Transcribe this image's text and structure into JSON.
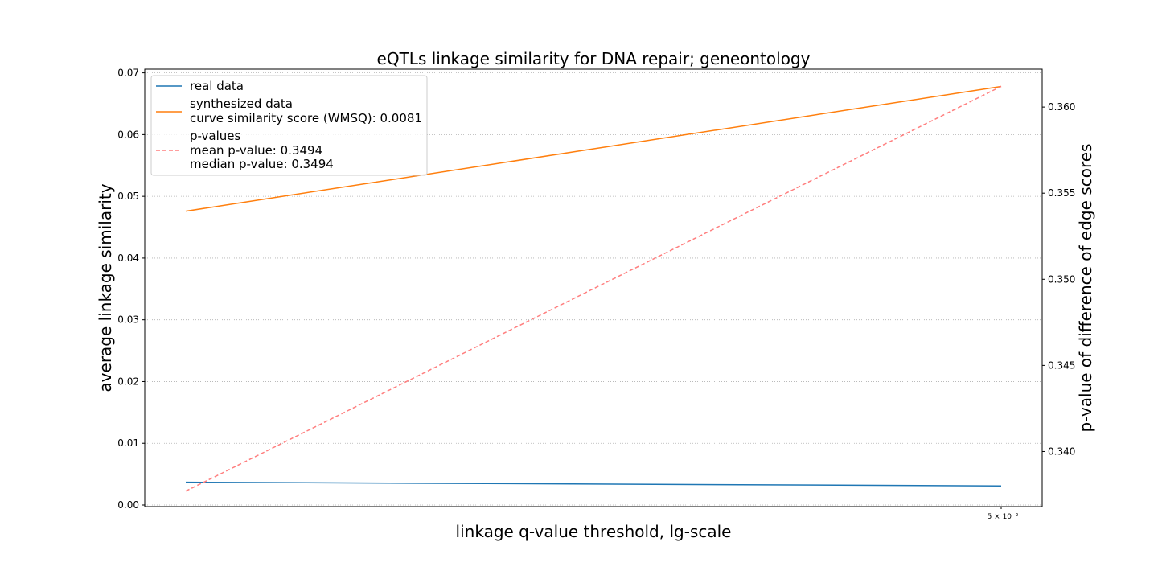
{
  "chart_data": {
    "type": "line",
    "title": "eQTLs linkage similarity for DNA repair; geneontology",
    "xlabel": "linkage q-value threshold, lg-scale",
    "ylabel": "average linkage similarity",
    "y2label": "p-value of difference of edge scores",
    "xscale": "log",
    "x": [
      0.01,
      0.05
    ],
    "x_tick_labels": [
      "5 × 10⁻²"
    ],
    "ylim": [
      0.0,
      0.0706
    ],
    "y_ticks": [
      "0.00",
      "0.01",
      "0.02",
      "0.03",
      "0.04",
      "0.05",
      "0.06",
      "0.07"
    ],
    "y2lim": [
      0.3368,
      0.3622
    ],
    "y2_ticks": [
      "0.340",
      "0.345",
      "0.350",
      "0.355",
      "0.360"
    ],
    "grid": "horizontal dotted",
    "legend_position": "upper-left",
    "series": [
      {
        "name": "real data",
        "axis": "left",
        "style": "solid",
        "color": "#1f77b4",
        "values": [
          0.0037,
          0.0031
        ]
      },
      {
        "name": "synthesized data",
        "legend_extra": "curve similarity score (WMSQ): 0.0081",
        "axis": "left",
        "style": "solid",
        "color": "#ff7f0e",
        "values": [
          0.0476,
          0.0678
        ]
      },
      {
        "name": "p-values",
        "legend_extra_lines": [
          "mean p-value: 0.3494",
          "median p-value: 0.3494"
        ],
        "axis": "right",
        "style": "dashed",
        "color": "#ff7f7f",
        "values": [
          0.3377,
          0.3612
        ]
      }
    ]
  }
}
